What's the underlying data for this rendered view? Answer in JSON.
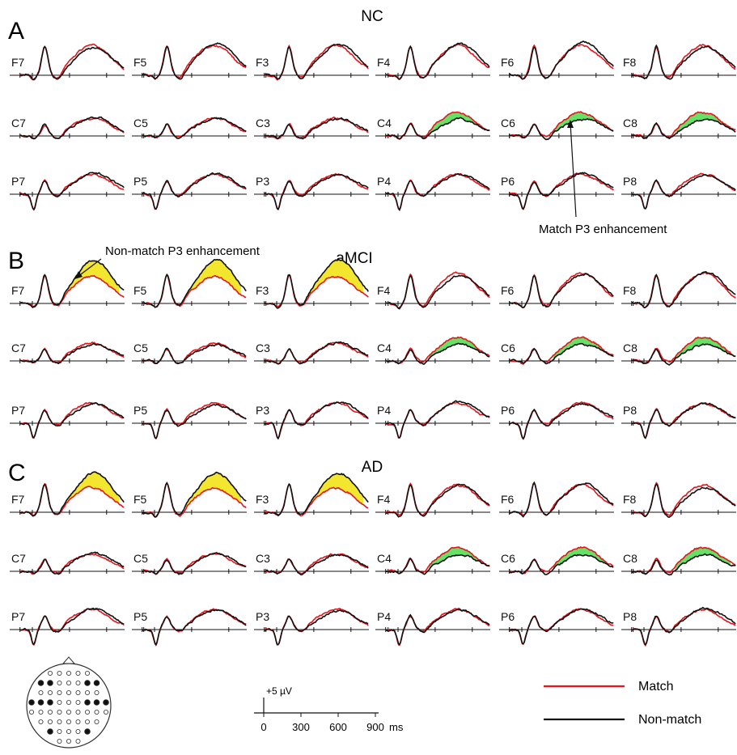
{
  "panels": [
    {
      "letter": "A",
      "group": "NC"
    },
    {
      "letter": "B",
      "group": "aMCI"
    },
    {
      "letter": "C",
      "group": "AD"
    }
  ],
  "electrode_rows": [
    [
      "F7",
      "F5",
      "F3",
      "F4",
      "F6",
      "F8"
    ],
    [
      "C7",
      "C5",
      "C3",
      "C4",
      "C6",
      "C8"
    ],
    [
      "P7",
      "P5",
      "P3",
      "P4",
      "P6",
      "P8"
    ]
  ],
  "annotations": {
    "match": "Match P3 enhancement",
    "nonmatch": "Non-match P3 enhancement"
  },
  "scale_bar": {
    "amplitude_label": "+5 µV",
    "ticks": [
      "0",
      "300",
      "600",
      "900"
    ],
    "unit": "ms"
  },
  "legend": [
    {
      "label": "Match",
      "color": "#e8141b"
    },
    {
      "label": "Non-match",
      "color": "#111111"
    }
  ],
  "colors": {
    "match_line": "#e8141b",
    "nonmatch_line": "#111111",
    "match_enhancement_fill": "#66e066",
    "nonmatch_enhancement_fill": "#f2e62e"
  },
  "highlights": {
    "match_enhancement": [
      {
        "panel": "A",
        "electrodes": [
          "C4",
          "C6",
          "C8"
        ]
      },
      {
        "panel": "B",
        "electrodes": [
          "C4",
          "C6",
          "C8"
        ]
      },
      {
        "panel": "C",
        "electrodes": [
          "C4",
          "C6",
          "C8"
        ]
      }
    ],
    "nonmatch_enhancement": [
      {
        "panel": "B",
        "electrodes": [
          "F7",
          "F5",
          "F3"
        ]
      },
      {
        "panel": "C",
        "electrodes": [
          "F7",
          "F5",
          "F3"
        ]
      }
    ]
  },
  "head_map": {
    "highlighted_sites": [
      "F7",
      "F5",
      "F3",
      "F4",
      "F6",
      "F8",
      "C7",
      "C5",
      "C3",
      "C4",
      "C6",
      "C8",
      "P7",
      "P5",
      "P3",
      "P4",
      "P6",
      "P8"
    ]
  }
}
